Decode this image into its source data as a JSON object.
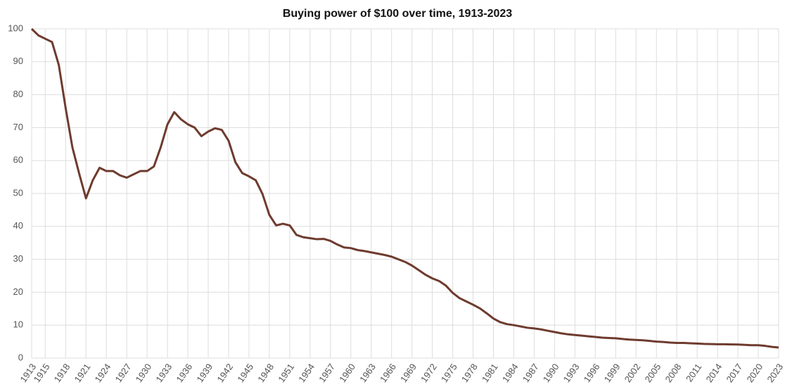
{
  "chart_data": {
    "type": "line",
    "title": "Buying power of $100 over time, 1913-2023",
    "x": [
      1913,
      1914,
      1915,
      1916,
      1917,
      1918,
      1919,
      1920,
      1921,
      1922,
      1923,
      1924,
      1925,
      1926,
      1927,
      1928,
      1929,
      1930,
      1931,
      1932,
      1933,
      1934,
      1935,
      1936,
      1937,
      1938,
      1939,
      1940,
      1941,
      1942,
      1943,
      1944,
      1945,
      1946,
      1947,
      1948,
      1949,
      1950,
      1951,
      1952,
      1953,
      1954,
      1955,
      1956,
      1957,
      1958,
      1959,
      1960,
      1961,
      1962,
      1963,
      1964,
      1965,
      1966,
      1967,
      1968,
      1969,
      1970,
      1971,
      1972,
      1973,
      1974,
      1975,
      1976,
      1977,
      1978,
      1979,
      1980,
      1981,
      1982,
      1983,
      1984,
      1985,
      1986,
      1987,
      1988,
      1989,
      1990,
      1991,
      1992,
      1993,
      1994,
      1995,
      1996,
      1997,
      1998,
      1999,
      2000,
      2001,
      2002,
      2003,
      2004,
      2005,
      2006,
      2007,
      2008,
      2009,
      2010,
      2011,
      2012,
      2013,
      2014,
      2015,
      2016,
      2017,
      2018,
      2019,
      2020,
      2021,
      2022,
      2023
    ],
    "series": [
      {
        "name": "Buying power",
        "color": "#6e3b2e",
        "values": [
          100,
          98,
          97,
          96,
          89,
          76,
          64,
          56,
          48.5,
          54,
          57.8,
          56.8,
          56.8,
          55.5,
          54.8,
          55.8,
          56.8,
          56.8,
          58.2,
          64,
          71,
          74.7,
          72.5,
          71,
          70,
          67.4,
          68.8,
          69.8,
          69.3,
          66,
          59.5,
          56.2,
          55.2,
          54,
          49.8,
          43.5,
          40.3,
          40.8,
          40.3,
          37.4,
          36.7,
          36.4,
          36.1,
          36.2,
          35.6,
          34.5,
          33.6,
          33.4,
          32.8,
          32.5,
          32.1,
          31.7,
          31.3,
          30.8,
          30,
          29.2,
          28.1,
          26.7,
          25.3,
          24.2,
          23.4,
          22,
          19.8,
          18.2,
          17.2,
          16.2,
          15.1,
          13.6,
          12,
          10.9,
          10.3,
          10,
          9.6,
          9.2,
          9,
          8.7,
          8.3,
          7.9,
          7.5,
          7.2,
          7,
          6.8,
          6.6,
          6.4,
          6.2,
          6.1,
          6,
          5.8,
          5.6,
          5.5,
          5.4,
          5.2,
          5,
          4.9,
          4.7,
          4.6,
          4.6,
          4.5,
          4.4,
          4.3,
          4.25,
          4.2,
          4.2,
          4.15,
          4.1,
          4,
          3.9,
          3.9,
          3.7,
          3.4,
          3.2
        ]
      }
    ],
    "xlim": [
      1913,
      2023
    ],
    "xticks": [
      1913,
      1915,
      1918,
      1921,
      1924,
      1927,
      1930,
      1933,
      1936,
      1939,
      1942,
      1945,
      1948,
      1951,
      1954,
      1957,
      1960,
      1963,
      1966,
      1969,
      1972,
      1975,
      1978,
      1981,
      1984,
      1987,
      1990,
      1993,
      1996,
      1999,
      2002,
      2005,
      2008,
      2011,
      2014,
      2017,
      2020,
      2023
    ],
    "ylim": [
      0,
      100
    ],
    "yticks": [
      0,
      10,
      20,
      30,
      40,
      50,
      60,
      70,
      80,
      90,
      100
    ],
    "grid": true
  }
}
